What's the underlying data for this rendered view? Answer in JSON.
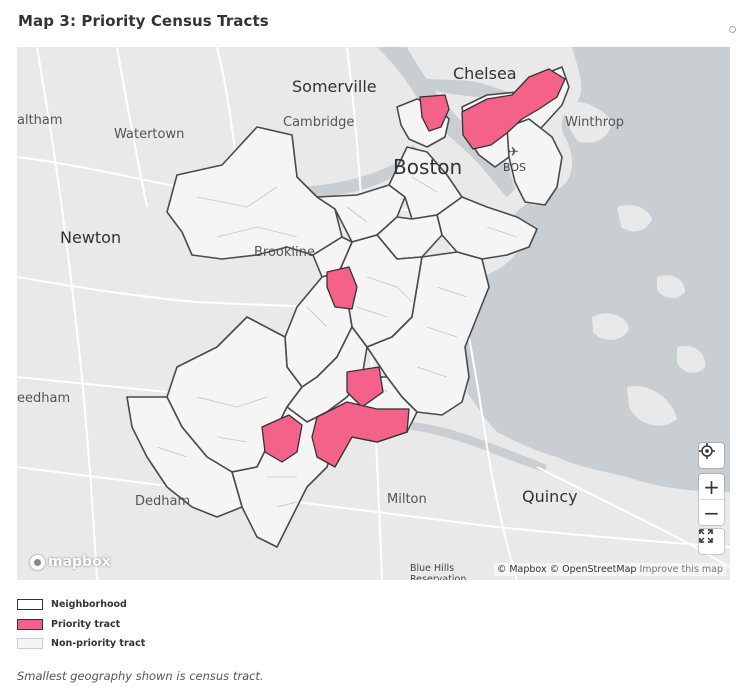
{
  "title": "Map 3: Priority Census Tracts",
  "map": {
    "places": [
      {
        "name": "Somerville",
        "size": "large"
      },
      {
        "name": "Chelsea",
        "size": "large"
      },
      {
        "name": "Cambridge",
        "size": "medium"
      },
      {
        "name": "Winthrop",
        "size": "medium"
      },
      {
        "name": "Watertown",
        "size": "medium"
      },
      {
        "name": "altham",
        "size": "medium"
      },
      {
        "name": "Boston",
        "size": "xlarge"
      },
      {
        "name": "BOS",
        "size": "small"
      },
      {
        "name": "Newton",
        "size": "large"
      },
      {
        "name": "Brookline",
        "size": "medium"
      },
      {
        "name": "eedham",
        "size": "medium"
      },
      {
        "name": "Dedham",
        "size": "medium"
      },
      {
        "name": "Milton",
        "size": "medium"
      },
      {
        "name": "Quincy",
        "size": "large"
      },
      {
        "name": "Blue Hills Reservation",
        "size": "small"
      }
    ],
    "colors": {
      "land": "#e9e9e9",
      "water": "#c9ced2",
      "road": "#ffffff",
      "neighborhood_border": "#4a4a4a",
      "tract_fill": "#f5f5f5",
      "tract_border": "#c4c4c4",
      "priority_fill": "#f4628a",
      "priority_border": "#333333"
    },
    "controls": {
      "locate_icon": "crosshair-target-icon",
      "zoom_in_label": "+",
      "zoom_out_label": "−",
      "fullscreen_icon": "fullscreen-icon"
    },
    "logo_text": "mapbox",
    "attribution": {
      "mapbox": "© Mapbox",
      "osm": "© OpenStreetMap",
      "improve": "Improve this map"
    }
  },
  "legend": [
    {
      "label": "Neighborhood",
      "fill": "#ffffff",
      "border": "#333333"
    },
    {
      "label": "Priority tract",
      "fill": "#f4628a",
      "border": "#333333"
    },
    {
      "label": "Non-priority tract",
      "fill": "#f5f5f5",
      "border": "#cccccc"
    }
  ],
  "note": "Smallest geography shown is census tract."
}
